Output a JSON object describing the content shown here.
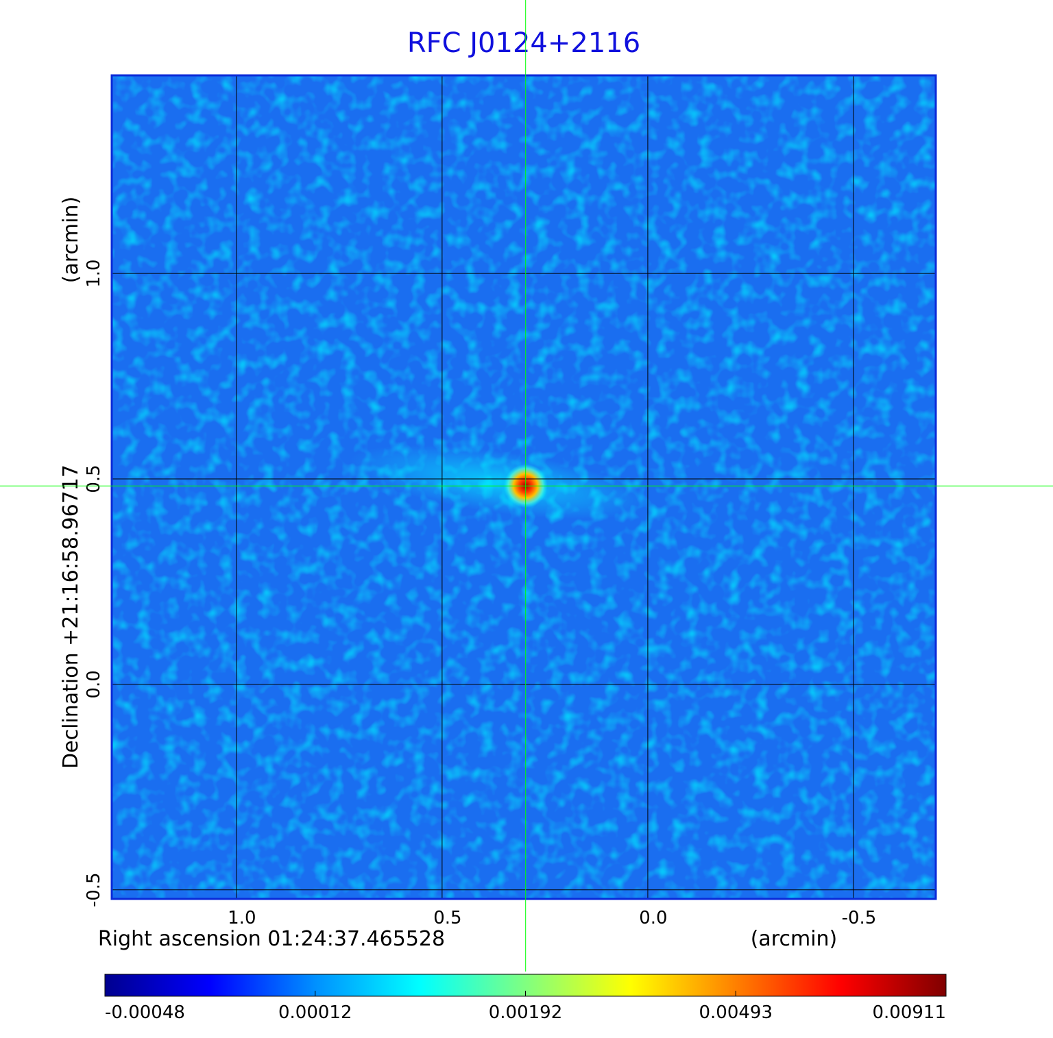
{
  "chart_data": {
    "type": "image",
    "title": "RFC J0124+2116",
    "title_color": "#1010dd",
    "x_label": "Right ascension  01:24:37.465528",
    "x_unit": "(arcmin)",
    "y_label": "Declination  +21:16:58.96717",
    "y_unit": "(arcmin)",
    "xlim": [
      1.303,
      -0.7
    ],
    "ylim": [
      -0.522,
      1.482
    ],
    "xticks": [
      {
        "value": 1,
        "label": "1.0"
      },
      0.5,
      {
        "value": 0,
        "label": "0.0"
      },
      -0.5
    ],
    "yticks": [
      {
        "value": 1,
        "label": "1.0"
      },
      0.5,
      {
        "value": 0,
        "label": "0.0"
      },
      -0.5
    ],
    "grid": true,
    "marker": {
      "x": 0.297,
      "y": 0.483,
      "color": "#00ff00"
    },
    "colormap": [
      "#00008f",
      "#0000ff",
      "#0090ff",
      "#00ffff",
      "#80ff80",
      "#ffff00",
      "#ff8000",
      "#ff0000",
      "#800000"
    ],
    "colorbar_ticks": [
      -0.00048,
      0.00012,
      0.00192,
      0.00493,
      0.00911
    ]
  }
}
